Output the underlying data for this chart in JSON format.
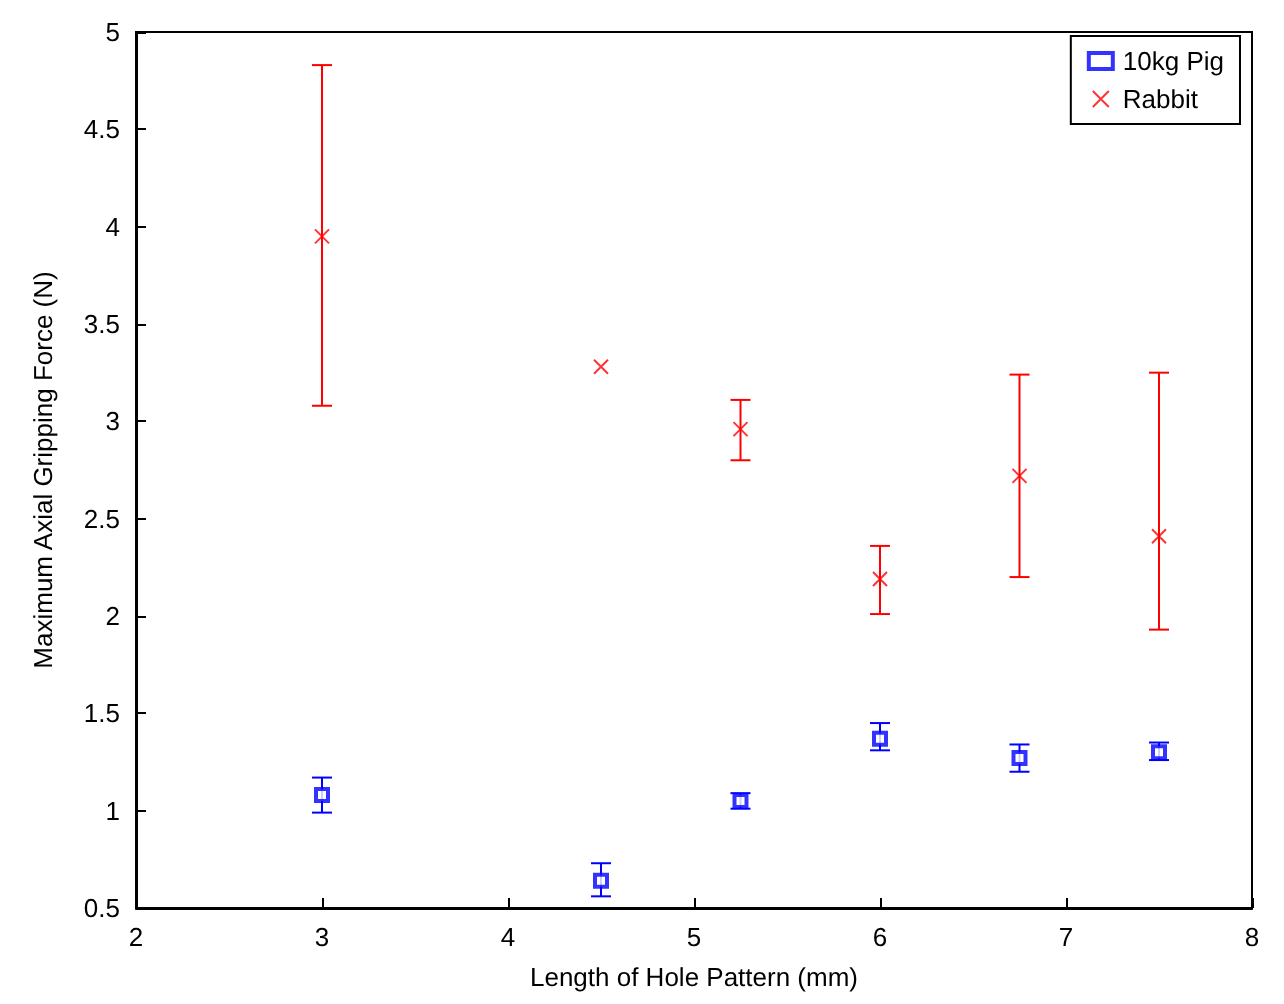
{
  "chart_data": {
    "type": "scatter",
    "xlabel": "Length of Hole Pattern (mm)",
    "ylabel": "Maximum Axial Gripping Force (N)",
    "x": [
      3,
      4.5,
      5.25,
      6,
      6.75,
      7.5
    ],
    "series": [
      {
        "name": "10kg Pig",
        "color": "#0000ff",
        "marker": "square",
        "values": [
          1.08,
          0.64,
          1.05,
          1.37,
          1.27,
          1.3
        ],
        "errors": [
          [
            0.99,
            1.17
          ],
          [
            0.56,
            0.73
          ],
          [
            1.01,
            1.09
          ],
          [
            1.31,
            1.45
          ],
          [
            1.2,
            1.34
          ],
          [
            1.26,
            1.35
          ]
        ]
      },
      {
        "name": "Rabbit",
        "color": "#ff0000",
        "marker": "cross",
        "values": [
          3.95,
          3.28,
          2.96,
          2.19,
          2.72,
          2.41
        ],
        "errors": [
          [
            3.08,
            4.83
          ],
          null,
          [
            2.8,
            3.11
          ],
          [
            2.01,
            2.36
          ],
          [
            2.2,
            3.24
          ],
          [
            1.93,
            3.25
          ]
        ]
      }
    ],
    "xlim": [
      2,
      8
    ],
    "xticks": [
      2,
      3,
      4,
      5,
      6,
      7,
      8
    ],
    "ylim": [
      0.5,
      5
    ],
    "yticks": [
      0.5,
      1,
      1.5,
      2,
      2.5,
      3,
      3.5,
      4,
      4.5,
      5
    ],
    "grid": false,
    "legend": "top right"
  }
}
